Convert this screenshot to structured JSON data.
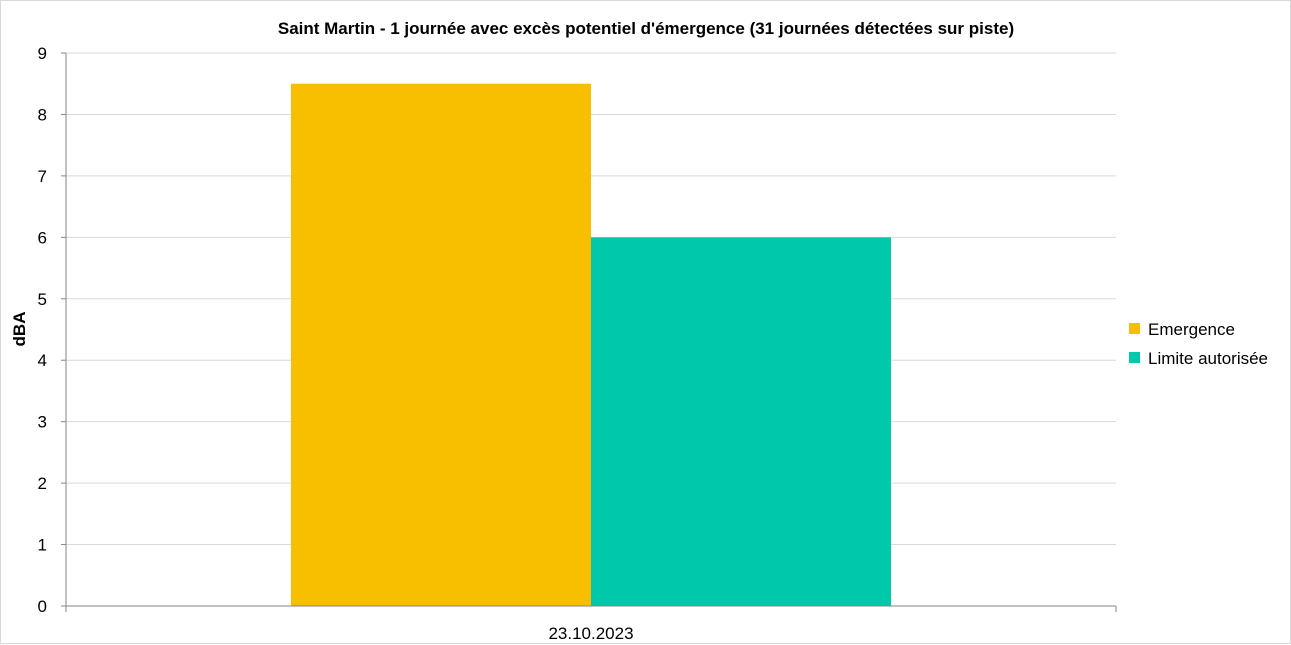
{
  "chart_data": {
    "type": "bar",
    "title": "Saint Martin - 1 journée avec excès potentiel d'émergence (31 journées détectées sur piste)",
    "xlabel": "",
    "ylabel": "dBA",
    "categories": [
      "23.10.2023"
    ],
    "series": [
      {
        "name": "Emergence",
        "values": [
          8.5
        ],
        "color": "#F8BE00"
      },
      {
        "name": "Limite autorisée",
        "values": [
          6
        ],
        "color": "#00C8AB"
      }
    ],
    "ylim": [
      0,
      9
    ],
    "yticks": [
      "0",
      "1",
      "2",
      "3",
      "4",
      "5",
      "6",
      "7",
      "8",
      "9"
    ],
    "grid": true,
    "legend_position": "right"
  }
}
